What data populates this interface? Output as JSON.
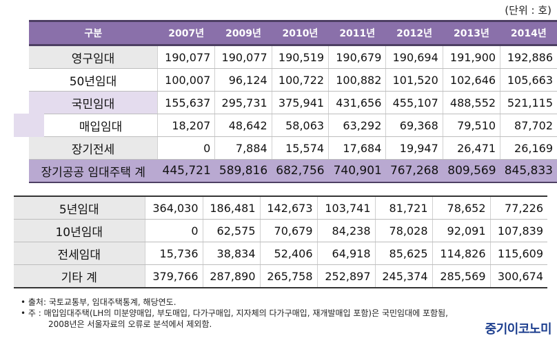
{
  "unit_label": "(단위 : 호)",
  "header": [
    "구분",
    "2007년",
    "2009년",
    "2010년",
    "2011년",
    "2012년",
    "2013년",
    "2014년"
  ],
  "table1": [
    {
      "label": "영구임대",
      "style": "gray",
      "values": [
        "190,077",
        "190,077",
        "190,519",
        "190,679",
        "190,694",
        "191,900",
        "192,886"
      ]
    },
    {
      "label": "50년임대",
      "style": "white",
      "values": [
        "100,007",
        "96,124",
        "100,722",
        "100,882",
        "101,520",
        "102,646",
        "105,663"
      ]
    },
    {
      "label": "국민임대",
      "style": "purple",
      "values": [
        "155,637",
        "295,731",
        "375,941",
        "431,656",
        "455,107",
        "488,552",
        "521,115"
      ]
    },
    {
      "label": "매입임대",
      "style": "sub",
      "values": [
        "18,207",
        "48,642",
        "58,063",
        "63,292",
        "69,368",
        "79,510",
        "87,702"
      ]
    },
    {
      "label": "장기전세",
      "style": "gray",
      "values": [
        "0",
        "7,884",
        "15,574",
        "17,684",
        "19,947",
        "26,471",
        "26,169"
      ]
    }
  ],
  "table1_total": {
    "label": "장기공공 임대주택 계",
    "values": [
      "445,721",
      "589,816",
      "682,756",
      "740,901",
      "767,268",
      "809,569",
      "845,833"
    ]
  },
  "table2": [
    {
      "label": "5년임대",
      "values": [
        "364,030",
        "186,481",
        "142,673",
        "103,741",
        "81,721",
        "78,652",
        "77,226"
      ]
    },
    {
      "label": "10년임대",
      "values": [
        "0",
        "62,575",
        "70,679",
        "84,238",
        "78,028",
        "92,091",
        "107,839"
      ]
    },
    {
      "label": "전세임대",
      "values": [
        "15,736",
        "38,834",
        "52,406",
        "64,918",
        "85,625",
        "114,826",
        "115,609"
      ]
    },
    {
      "label": "기타 계",
      "values": [
        "379,766",
        "287,890",
        "265,758",
        "252,897",
        "245,374",
        "285,569",
        "300,674"
      ]
    }
  ],
  "notes": [
    "• 출처: 국토교통부, 임대주택통계, 해당연도.",
    "• 주 : 매입임대주택(LH의 미분양매입, 부도매입, 다가구매입, 지자체의 다가구매입, 재개발매입 포함)은 국민임대에 포함됨,",
    "2008년은 서울자료의 오류로 분석에서 제외함."
  ],
  "logo": "중기이코노미"
}
